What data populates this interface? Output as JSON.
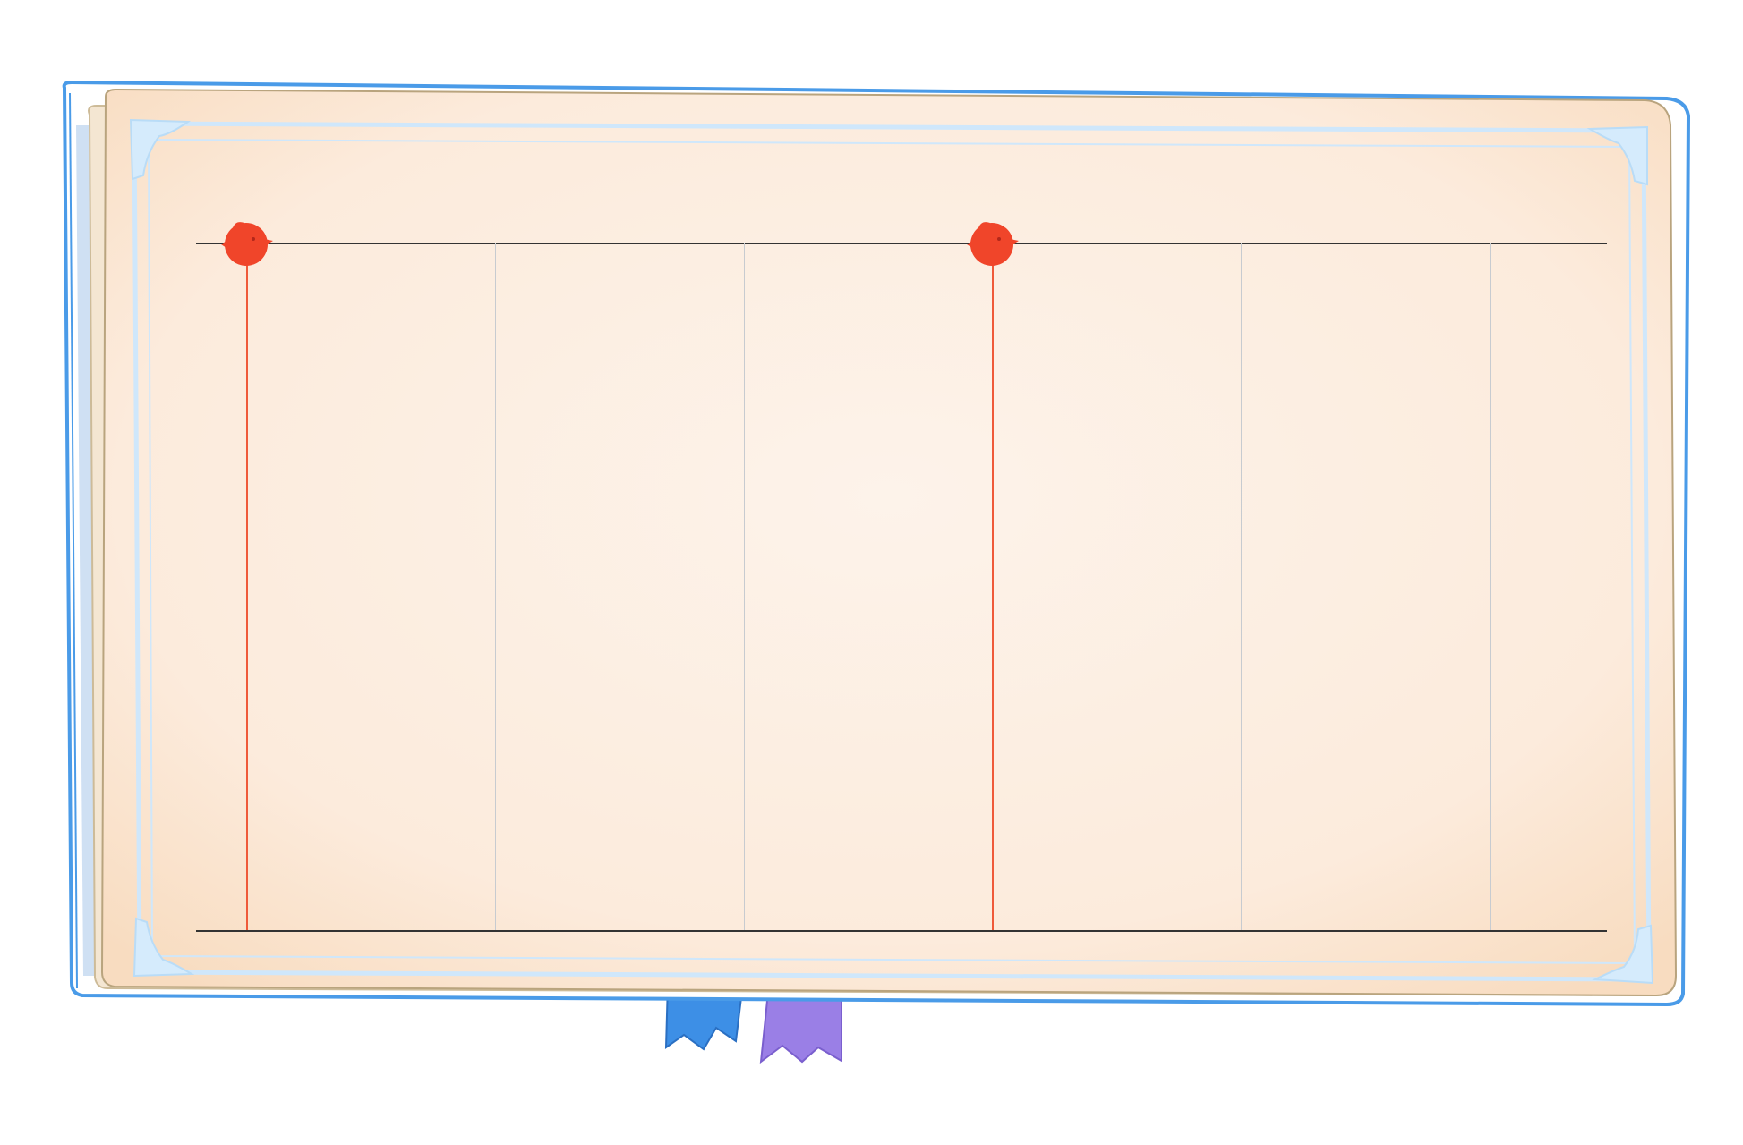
{
  "theme": {
    "frame_blue": "#4a9be8",
    "paper": "#fde9d6",
    "paper_inner": "#f6f9fd",
    "ornament_blue": "#cfe7fb",
    "marker_red": "#f0452a",
    "rule_dark": "#333333",
    "grid_gray": "#c7cbd0",
    "ribbon_blue": "#3d8fe6",
    "ribbon_purple": "#9a7fe6"
  },
  "timeline": {
    "column_count": 6,
    "marked_columns": [
      0,
      3
    ],
    "markers": [
      {
        "icon": "bird-marker-icon",
        "column": 0
      },
      {
        "icon": "bird-marker-icon",
        "column": 3
      }
    ]
  },
  "bookmarks": [
    {
      "icon": "ribbon-bookmark-icon",
      "color": "blue"
    },
    {
      "icon": "ribbon-bookmark-icon",
      "color": "purple"
    }
  ]
}
